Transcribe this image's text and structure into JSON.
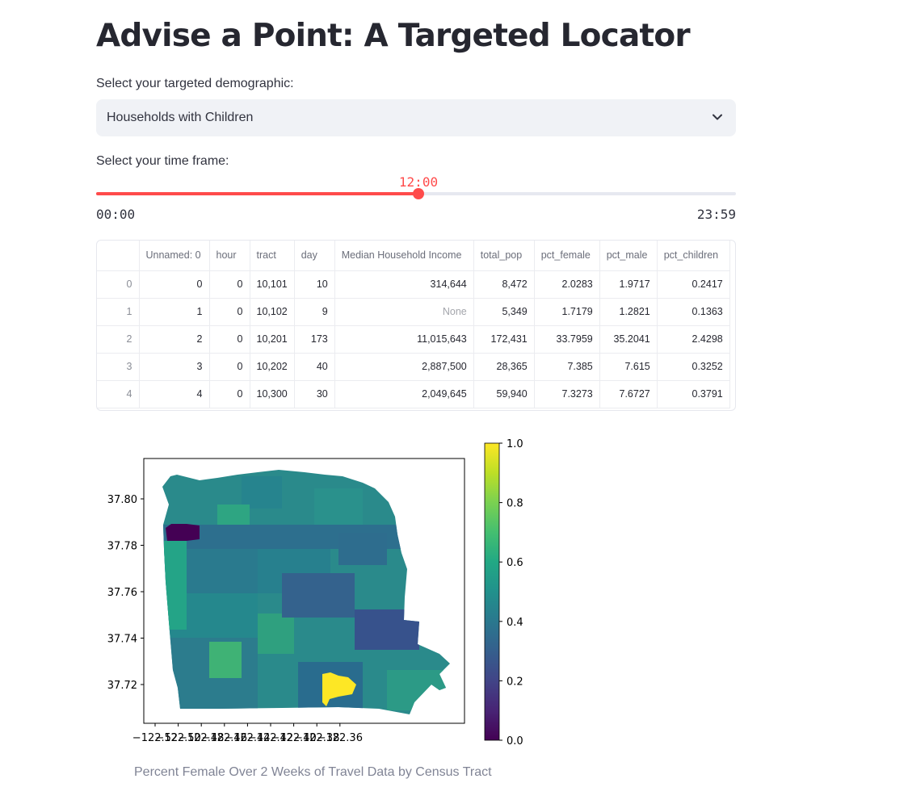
{
  "page": {
    "title": "Advise a Point: A Targeted Locator"
  },
  "demographic": {
    "label": "Select your targeted demographic:",
    "selected": "Households with Children"
  },
  "timeframe": {
    "label": "Select your time frame:",
    "value": "12:00",
    "min": "00:00",
    "max": "23:59",
    "fraction": 0.5
  },
  "table": {
    "columns": [
      "",
      "Unnamed: 0",
      "hour",
      "tract",
      "day",
      "Median Household Income",
      "total_pop",
      "pct_female",
      "pct_male",
      "pct_children"
    ],
    "rows": [
      [
        "0",
        "0",
        "0",
        "10,101",
        "10",
        "314,644",
        "8,472",
        "2.0283",
        "1.9717",
        "0.2417"
      ],
      [
        "1",
        "1",
        "0",
        "10,102",
        "9",
        "None",
        "5,349",
        "1.7179",
        "1.2821",
        "0.1363"
      ],
      [
        "2",
        "2",
        "0",
        "10,201",
        "173",
        "11,015,643",
        "172,431",
        "33.7959",
        "35.2041",
        "2.4298"
      ],
      [
        "3",
        "3",
        "0",
        "10,202",
        "40",
        "2,887,500",
        "28,365",
        "7.385",
        "7.615",
        "0.3252"
      ],
      [
        "4",
        "4",
        "0",
        "10,300",
        "30",
        "2,049,645",
        "59,940",
        "7.3273",
        "7.6727",
        "0.3791"
      ]
    ]
  },
  "chart_data": {
    "type": "heatmap",
    "title": "",
    "xlabel": "",
    "ylabel": "",
    "x_ticks": [
      "−122.52",
      "−122.50",
      "−122.48",
      "−122.46",
      "−122.44",
      "−122.42",
      "−122.40",
      "−122.38",
      "−122.36"
    ],
    "y_ticks": [
      "37.72",
      "37.74",
      "37.76",
      "37.78",
      "37.80"
    ],
    "colorbar": {
      "min": 0.0,
      "max": 1.0,
      "ticks": [
        "0.0",
        "0.2",
        "0.4",
        "0.6",
        "0.8",
        "1.0"
      ],
      "colormap": "viridis"
    }
  },
  "caption": "Percent Female Over 2 Weeks of Travel Data by Census Tract"
}
